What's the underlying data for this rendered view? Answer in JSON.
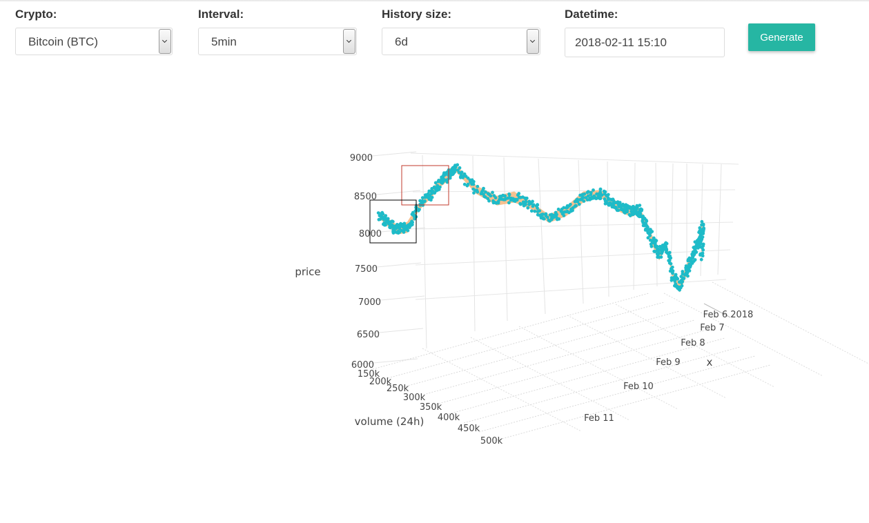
{
  "controls": {
    "crypto": {
      "label": "Crypto:",
      "value": "Bitcoin (BTC)"
    },
    "interval": {
      "label": "Interval:",
      "value": "5min"
    },
    "history": {
      "label": "History size:",
      "value": "6d"
    },
    "datetime": {
      "label": "Datetime:",
      "value": "2018-02-11 15:10"
    },
    "generate_label": "Generate"
  },
  "colors": {
    "accent": "#26b6a3",
    "points": "#1ebbc8",
    "band": "#f5b67d",
    "highlight_red": "#c0392b",
    "highlight_black": "#000000"
  },
  "chart_data": {
    "type": "scatter",
    "dimensions": "3d",
    "axes": {
      "price": {
        "title": "price",
        "ticks": [
          "6000",
          "6500",
          "7000",
          "7500",
          "8000",
          "8500",
          "9000"
        ],
        "range": [
          6000,
          9000
        ]
      },
      "volume": {
        "title": "volume (24h)",
        "ticks": [
          "150k",
          "200k",
          "250k",
          "300k",
          "350k",
          "400k",
          "450k",
          "500k"
        ],
        "range": [
          150000,
          500000
        ]
      },
      "x": {
        "title": "x",
        "ticks": [
          "Feb 6 2018",
          "Feb 7",
          "Feb 8",
          "Feb 9",
          "Feb 10",
          "Feb 11"
        ],
        "range": [
          "2018-02-06",
          "2018-02-11"
        ]
      }
    },
    "grid": true,
    "series": [
      {
        "points_price": [
          8250,
          8150,
          8050,
          8080,
          8350,
          8550,
          8720,
          8820,
          8900,
          8600,
          8450,
          8500,
          8380,
          8200,
          8300,
          8500,
          8550,
          8420,
          8350,
          8300,
          8320,
          8150,
          7900,
          7700,
          7850,
          7400,
          7250,
          7500,
          7700,
          7900,
          8100,
          7650
        ],
        "points_x": [
          "2018-02-06 00:00",
          "2018-02-06 04:00",
          "2018-02-06 08:00",
          "2018-02-06 12:00",
          "2018-02-06 16:00",
          "2018-02-06 20:00",
          "2018-02-07 00:00",
          "2018-02-07 04:00",
          "2018-02-07 08:00",
          "2018-02-07 12:00",
          "2018-02-07 16:00",
          "2018-02-07 20:00",
          "2018-02-08 00:00",
          "2018-02-08 04:00",
          "2018-02-08 08:00",
          "2018-02-08 12:00",
          "2018-02-08 16:00",
          "2018-02-08 20:00",
          "2018-02-09 00:00",
          "2018-02-09 04:00",
          "2018-02-09 08:00",
          "2018-02-09 12:00",
          "2018-02-09 16:00",
          "2018-02-09 20:00",
          "2018-02-10 00:00",
          "2018-02-10 04:00",
          "2018-02-10 08:00",
          "2018-02-10 12:00",
          "2018-02-10 16:00",
          "2018-02-10 20:00",
          "2018-02-11 00:00",
          "2018-02-11 15:10"
        ]
      }
    ]
  }
}
